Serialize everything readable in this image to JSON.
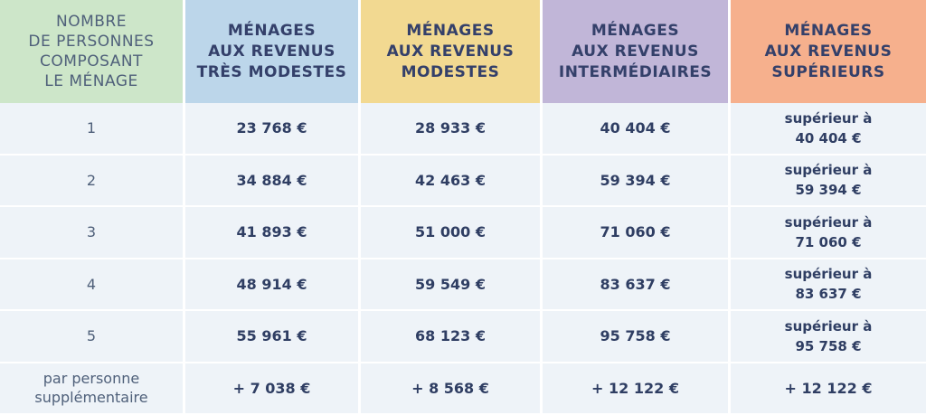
{
  "headers": [
    "NOMBRE\nDE PERSONNES\nCOMPOSANT\nLE MÉNAGE",
    "MÉNAGES\nAUX REVENUS\nTRÈS MODESTES",
    "MÉNAGES\nAUX REVENUS\nMODESTES",
    "MÉNAGES\nAUX REVENUS\nINTERMÉDIAIRES",
    "MÉNAGES\nAUX REVENUS\nSUPÉRIEURS"
  ],
  "colors": {
    "col0": "#cde6c9",
    "col1": "#bcd6ea",
    "col2": "#f2d991",
    "col3": "#c1b6d8",
    "col4": "#f6b08d",
    "row_bg": "#eef3f8",
    "text": "#2f3e63"
  },
  "rows": [
    {
      "label": "1",
      "tres_modestes": "23 768 €",
      "modestes": "28 933 €",
      "intermediaires": "40 404 €",
      "superieurs_a": "supérieur à",
      "superieurs_v": "40 404 €"
    },
    {
      "label": "2",
      "tres_modestes": "34 884 €",
      "modestes": "42 463 €",
      "intermediaires": "59 394 €",
      "superieurs_a": "supérieur à",
      "superieurs_v": "59 394 €"
    },
    {
      "label": "3",
      "tres_modestes": "41 893 €",
      "modestes": "51 000 €",
      "intermediaires": "71 060 €",
      "superieurs_a": "supérieur à",
      "superieurs_v": "71 060 €"
    },
    {
      "label": "4",
      "tres_modestes": "48 914 €",
      "modestes": "59 549 €",
      "intermediaires": "83 637 €",
      "superieurs_a": "supérieur à",
      "superieurs_v": "83 637 €"
    },
    {
      "label": "5",
      "tres_modestes": "55 961 €",
      "modestes": "68 123 €",
      "intermediaires": "95 758 €",
      "superieurs_a": "supérieur à",
      "superieurs_v": "95 758 €"
    }
  ],
  "extra": {
    "label_line1": "par personne",
    "label_line2": "supplémentaire",
    "tres_modestes": "+ 7 038 €",
    "modestes": "+ 8 568 €",
    "intermediaires": "+ 12 122 €",
    "superieurs": "+ 12 122 €"
  }
}
